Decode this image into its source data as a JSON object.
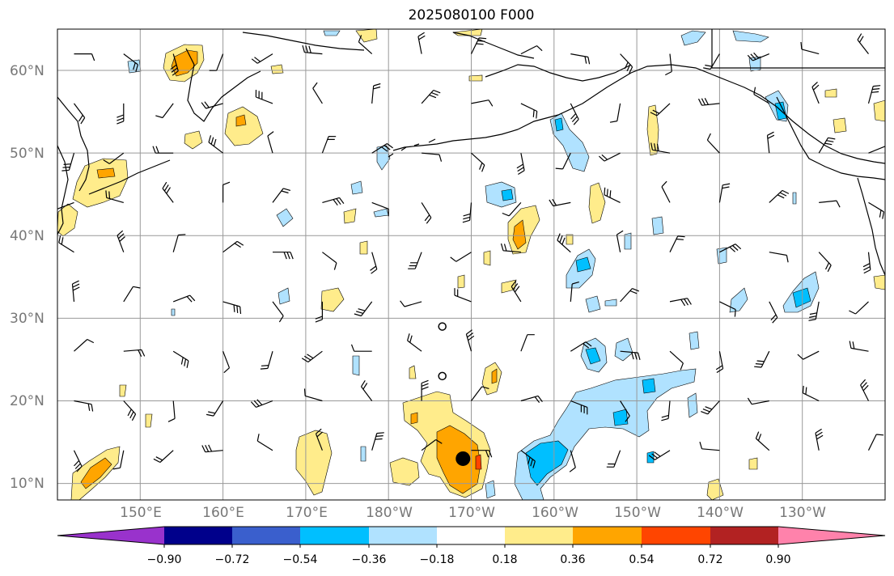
{
  "title": "2025080100 F000",
  "lat_labels": [
    "60°N",
    "50°N",
    "40°N",
    "30°N",
    "20°N",
    "10°N"
  ],
  "lon_labels": [
    "150°E",
    "160°E",
    "170°E",
    "180°W",
    "170°W",
    "160°W",
    "150°W",
    "140°W",
    "130°W"
  ],
  "colorbar": {
    "tick_labels": [
      "−0.90",
      "−0.72",
      "−0.54",
      "−0.36",
      "−0.18",
      "0.18",
      "0.36",
      "0.54",
      "0.72",
      "0.90"
    ],
    "colors": [
      "#9932cc",
      "#00008b",
      "#3a5fcd",
      "#00bfff",
      "#b0e2ff",
      "#ffffff",
      "#ffec8b",
      "#ffa500",
      "#ff4500",
      "#b22222",
      "#ff82ab"
    ]
  },
  "map": {
    "projection": "PlateCarree",
    "extent": {
      "lon_min": 140,
      "lon_max": 240,
      "lat_min": 8,
      "lat_max": 65
    },
    "gridlines": true,
    "field_colors": {
      "light_blue": "#b0e2ff",
      "blue": "#00bfff",
      "light_yellow": "#ffec8b",
      "orange": "#ffa500",
      "red_orange": "#ff4500"
    },
    "marker": {
      "lon": 189,
      "lat": 13
    },
    "open_circles": [
      {
        "lon": 186.5,
        "lat": 29
      },
      {
        "lon": 186.5,
        "lat": 23
      }
    ]
  }
}
